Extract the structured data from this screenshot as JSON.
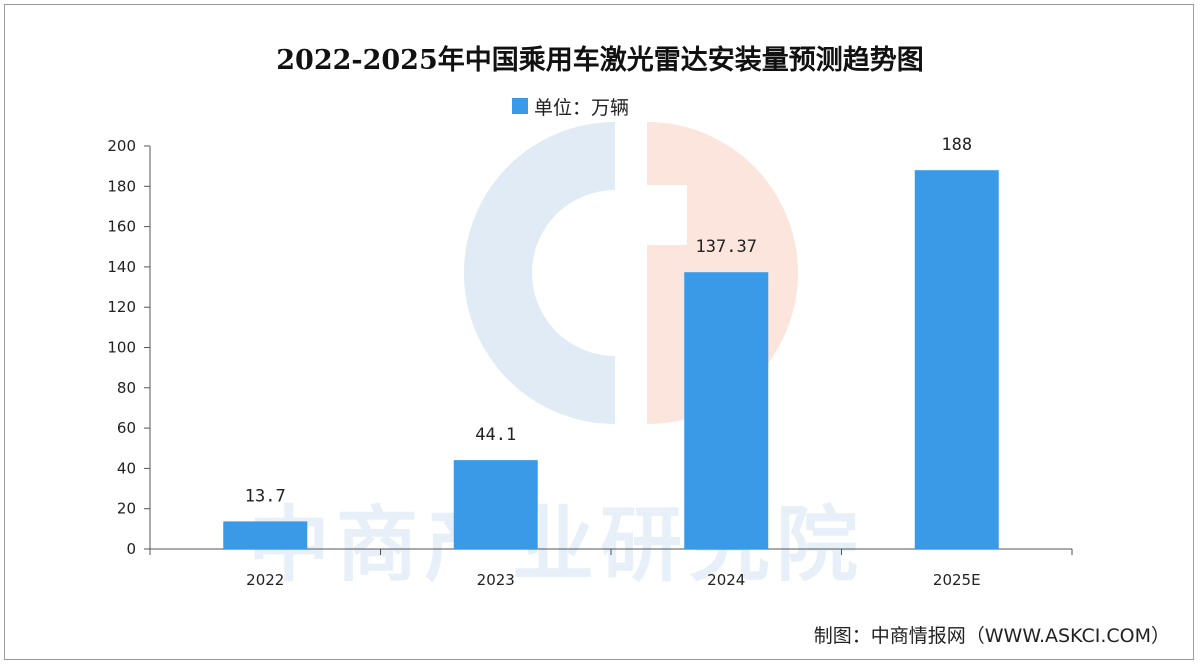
{
  "chart_data": {
    "type": "bar",
    "title": "2022-2025年中国乘用车激光雷达安装量预测趋势图",
    "legend_label": "单位：万辆",
    "categories": [
      "2022",
      "2023",
      "2024",
      "2025E"
    ],
    "values": [
      13.7,
      44.1,
      137.37,
      188
    ],
    "value_labels": [
      "13.7",
      "44.1",
      "137.37",
      "188"
    ],
    "yticks": [
      0,
      20,
      40,
      60,
      80,
      100,
      120,
      140,
      160,
      180,
      200
    ],
    "ylim": [
      0,
      200
    ],
    "xlabel": "",
    "ylabel": "",
    "bar_color": "#3b9ae8",
    "grid": false
  },
  "watermark": {
    "text": "中商产业研究院"
  },
  "source": "制图：中商情报网（WWW.ASKCI.COM）"
}
